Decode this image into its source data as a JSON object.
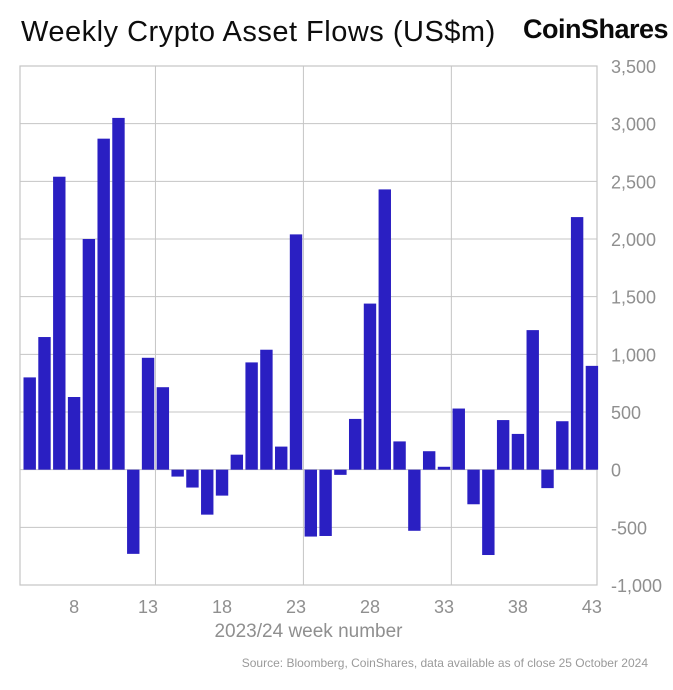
{
  "header": {
    "title": "Weekly Crypto Asset Flows (US$m)",
    "logo": "CoinShares"
  },
  "chart_data": {
    "type": "bar",
    "title": "Weekly Crypto Asset Flows (US$m)",
    "xlabel": "2023/24 week number",
    "ylabel": "",
    "x": [
      5,
      6,
      7,
      8,
      9,
      10,
      11,
      12,
      13,
      14,
      15,
      16,
      17,
      18,
      19,
      20,
      21,
      22,
      23,
      24,
      25,
      26,
      27,
      28,
      29,
      30,
      31,
      32,
      33,
      34,
      35,
      36,
      37,
      38,
      39,
      40,
      41,
      42,
      43
    ],
    "values": [
      800,
      1150,
      2540,
      630,
      2000,
      2870,
      3050,
      -730,
      970,
      715,
      -60,
      -155,
      -390,
      -225,
      130,
      930,
      1040,
      200,
      2040,
      -580,
      -575,
      -45,
      440,
      1440,
      2430,
      245,
      -530,
      160,
      25,
      530,
      -300,
      -740,
      430,
      310,
      1210,
      -160,
      420,
      2190,
      900
    ],
    "x_tick_labels": [
      "8",
      "13",
      "18",
      "23",
      "28",
      "33",
      "38",
      "43"
    ],
    "x_ticks": [
      8,
      13,
      18,
      23,
      28,
      33,
      38,
      43
    ],
    "x_gridline_weeks": [
      13.5,
      23.5,
      33.5
    ],
    "y_ticks": [
      3500,
      3000,
      2500,
      2000,
      1500,
      1000,
      500,
      0,
      -500,
      -1000
    ],
    "y_tick_labels": [
      "3,500",
      "3,000",
      "2,500",
      "2,000",
      "1,500",
      "1,000",
      "500",
      "0",
      "-500",
      "-1,000"
    ],
    "ylim": [
      -1000,
      3500
    ],
    "bar_color": "#2a1fc2",
    "grid_color": "#c5c5c5",
    "label_color": "#8f8f8f",
    "source": "Source: Bloomberg, CoinShares, data available as of close 25 October 2024"
  }
}
